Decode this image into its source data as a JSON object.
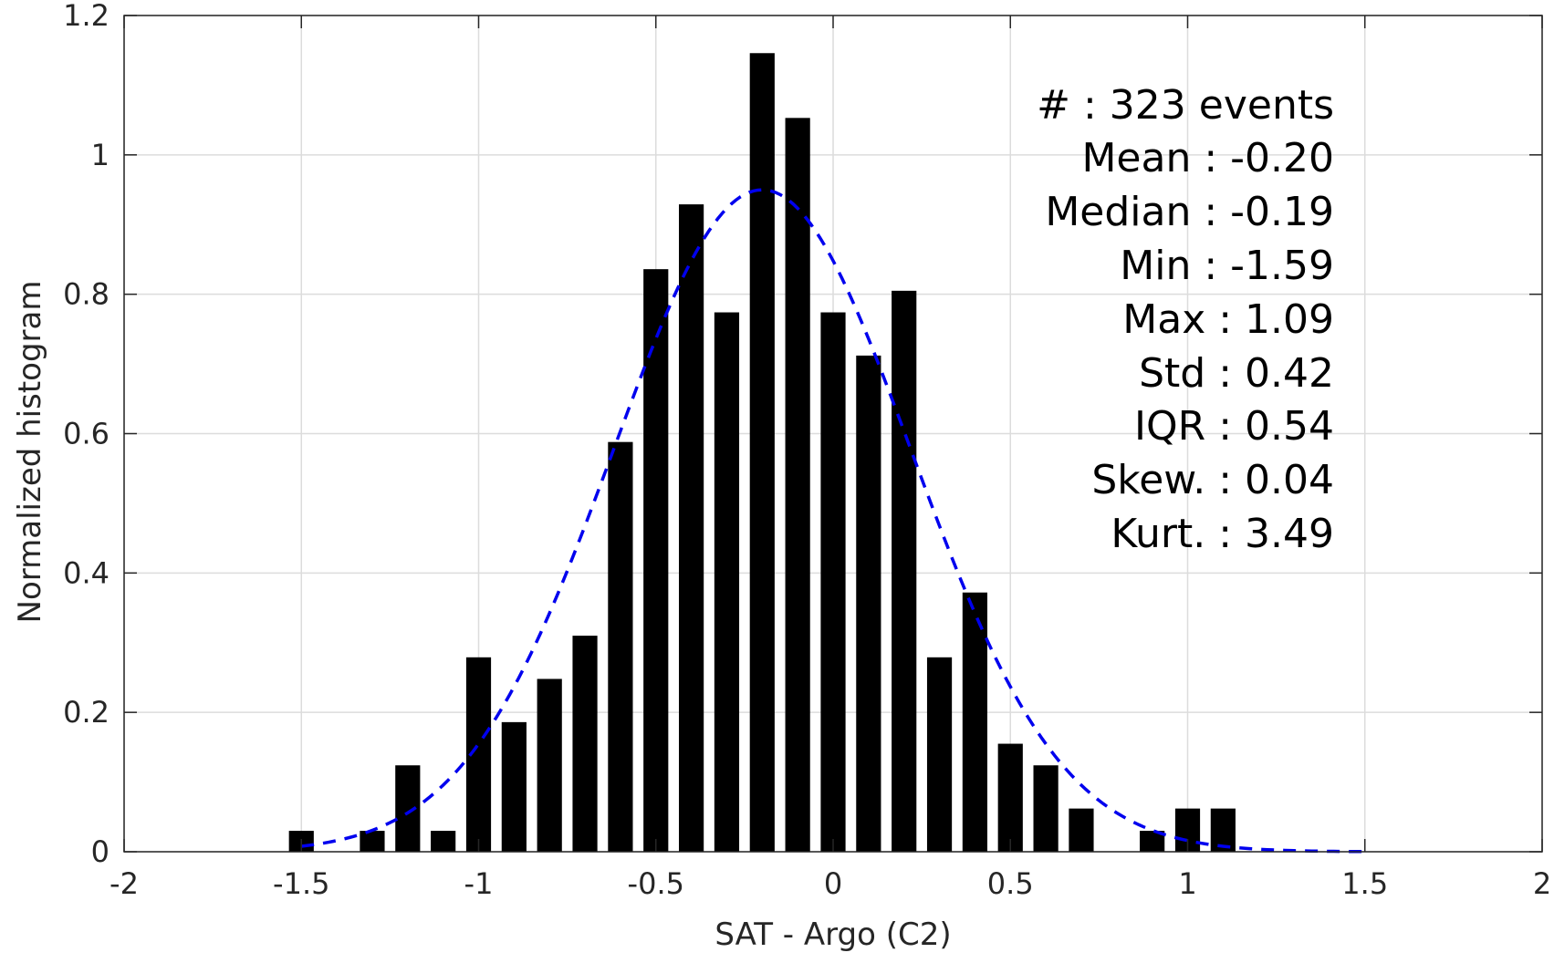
{
  "chart_data": {
    "type": "bar",
    "xlabel": "SAT - Argo (C2)",
    "ylabel": "Normalized histogram",
    "xlim": [
      -2,
      2
    ],
    "ylim": [
      0,
      1.2
    ],
    "grid": true,
    "x_ticks": [
      "-2",
      "-1.5",
      "-1",
      "-0.5",
      "0",
      "0.5",
      "1",
      "1.5",
      "2"
    ],
    "y_ticks": [
      "0",
      "0.2",
      "0.4",
      "0.6",
      "0.8",
      "1",
      "1.2"
    ],
    "bar_width": 0.07,
    "bars": [
      {
        "x": -1.5,
        "y": 0.03
      },
      {
        "x": -1.3,
        "y": 0.03
      },
      {
        "x": -1.2,
        "y": 0.124
      },
      {
        "x": -1.1,
        "y": 0.03
      },
      {
        "x": -1.0,
        "y": 0.279
      },
      {
        "x": -0.9,
        "y": 0.186
      },
      {
        "x": -0.8,
        "y": 0.248
      },
      {
        "x": -0.7,
        "y": 0.31
      },
      {
        "x": -0.6,
        "y": 0.588
      },
      {
        "x": -0.5,
        "y": 0.836
      },
      {
        "x": -0.4,
        "y": 0.929
      },
      {
        "x": -0.3,
        "y": 0.774
      },
      {
        "x": -0.2,
        "y": 1.146
      },
      {
        "x": -0.1,
        "y": 1.053
      },
      {
        "x": 0.0,
        "y": 0.774
      },
      {
        "x": 0.1,
        "y": 0.712
      },
      {
        "x": 0.2,
        "y": 0.805
      },
      {
        "x": 0.3,
        "y": 0.279
      },
      {
        "x": 0.4,
        "y": 0.372
      },
      {
        "x": 0.5,
        "y": 0.155
      },
      {
        "x": 0.6,
        "y": 0.124
      },
      {
        "x": 0.7,
        "y": 0.062
      },
      {
        "x": 0.9,
        "y": 0.03
      },
      {
        "x": 1.0,
        "y": 0.062
      },
      {
        "x": 1.1,
        "y": 0.062
      }
    ],
    "fit_curve": {
      "style": "dashed",
      "mean": -0.2,
      "std": 0.42,
      "x_range": [
        -1.5,
        1.5
      ]
    },
    "colors": {
      "bars": "#000000",
      "fit": "#0000ee"
    },
    "stats": [
      "#  : 323 events",
      "Mean : -0.20",
      "Median : -0.19",
      "Min : -1.59",
      "Max : 1.09",
      "Std : 0.42",
      "IQR : 0.54",
      "Skew. : 0.04",
      "Kurt. : 3.49"
    ]
  }
}
